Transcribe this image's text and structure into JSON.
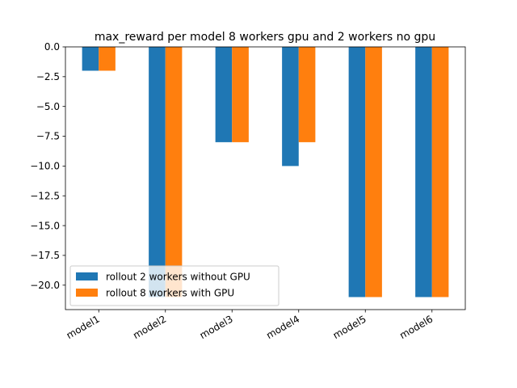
{
  "chart_data": {
    "type": "bar",
    "title": "max_reward per model 8 workers gpu and 2 workers no gpu",
    "xlabel": "",
    "ylabel": "",
    "categories": [
      "model1",
      "model2",
      "model3",
      "model4",
      "model5",
      "model6"
    ],
    "series": [
      {
        "name": "rollout 2 workers without GPU",
        "color": "#1f77b4",
        "values": [
          -2,
          -21,
          -8,
          -10,
          -21,
          -21
        ]
      },
      {
        "name": "rollout 8 workers with GPU",
        "color": "#ff7f0e",
        "values": [
          -2,
          -21,
          -8,
          -8,
          -21,
          -21
        ]
      }
    ],
    "ylim": [
      -22.05,
      0
    ],
    "yticks": [
      0.0,
      -2.5,
      -5.0,
      -7.5,
      -10.0,
      -12.5,
      -15.0,
      -17.5,
      -20.0
    ],
    "ytick_labels": [
      "0.0",
      "−2.5",
      "−5.0",
      "−7.5",
      "−10.0",
      "−12.5",
      "−15.0",
      "−17.5",
      "−20.0"
    ],
    "grid": false,
    "legend_position": "lower-left"
  }
}
